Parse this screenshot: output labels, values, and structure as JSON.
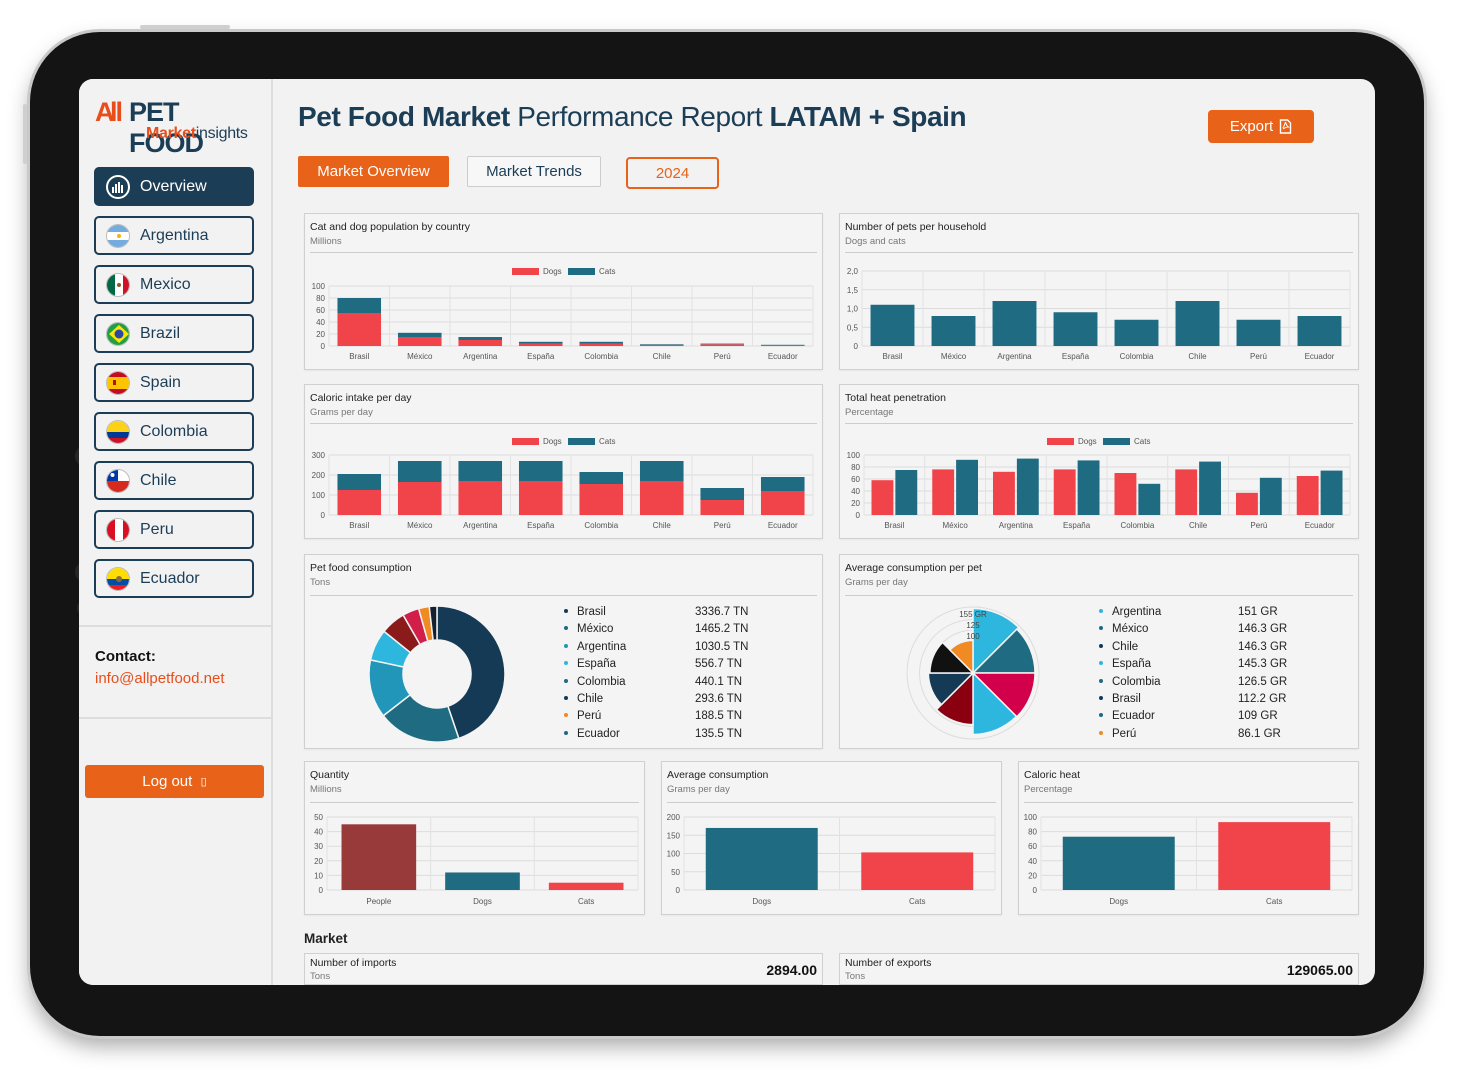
{
  "colors": {
    "accent": "#e8621a",
    "navy": "#1c3d56",
    "teal": "#1e6b82",
    "red": "#f0444a"
  },
  "logo": {
    "a": "A",
    "pet_food": "PET FOOD",
    "market": "Market",
    "insights": "insights"
  },
  "sidebar": {
    "items": [
      {
        "label": "Overview",
        "icon": "bar-chart-icon"
      },
      {
        "label": "Argentina",
        "icon": "argentina-flag-icon"
      },
      {
        "label": "Mexico",
        "icon": "mexico-flag-icon"
      },
      {
        "label": "Brazil",
        "icon": "brazil-flag-icon"
      },
      {
        "label": "Spain",
        "icon": "spain-flag-icon"
      },
      {
        "label": "Colombia",
        "icon": "colombia-flag-icon"
      },
      {
        "label": "Chile",
        "icon": "chile-flag-icon"
      },
      {
        "label": "Peru",
        "icon": "peru-flag-icon"
      },
      {
        "label": "Ecuador",
        "icon": "ecuador-flag-icon"
      }
    ],
    "contact_heading": "Contact:",
    "contact_email": "info@allpetfood.net",
    "logout_label": "Log out",
    "logout_icon": "▯"
  },
  "header": {
    "title_bold1": "Pet Food Market",
    "title_mid": " Performance Report ",
    "title_bold2": "LATAM + Spain",
    "export_label": "Export"
  },
  "tabs": {
    "market_overview": "Market Overview",
    "market_trends": "Market Trends",
    "year": "2024"
  },
  "market_heading": "Market",
  "kpis": {
    "imports": {
      "title": "Number of imports",
      "subtitle": "Tons",
      "value": "2894.00"
    },
    "exports": {
      "title": "Number of exports",
      "subtitle": "Tons",
      "value": "129065.00"
    }
  },
  "chart_data": [
    {
      "id": "population",
      "type": "bar",
      "stacked": true,
      "title": "Cat and dog population by country",
      "subtitle": "Millions",
      "categories": [
        "Brasil",
        "México",
        "Argentina",
        "España",
        "Colombia",
        "Chile",
        "Perú",
        "Ecuador"
      ],
      "series": [
        {
          "name": "Dogs",
          "color": "#f0444a",
          "values": [
            55,
            15,
            10,
            4,
            4,
            2,
            3,
            1
          ]
        },
        {
          "name": "Cats",
          "color": "#1e6b82",
          "values": [
            25,
            7,
            5,
            3,
            3,
            1,
            1,
            1
          ]
        }
      ],
      "yticks": [
        "100",
        "80",
        "60",
        "40",
        "20",
        "0"
      ],
      "ylim": [
        0,
        100
      ],
      "legend": "top-center"
    },
    {
      "id": "pets_household",
      "type": "bar",
      "title": "Number of pets per household",
      "subtitle": "Dogs and cats",
      "categories": [
        "Brasil",
        "México",
        "Argentina",
        "España",
        "Colombia",
        "Chile",
        "Perú",
        "Ecuador"
      ],
      "series": [
        {
          "name": "Pets",
          "color": "#1e6b82",
          "values": [
            1.1,
            0.8,
            1.2,
            0.9,
            0.7,
            1.2,
            0.7,
            0.8
          ]
        }
      ],
      "yticks": [
        "2,0",
        "1,5",
        "1,0",
        "0,5",
        "0"
      ],
      "ylim": [
        0,
        2
      ]
    },
    {
      "id": "caloric",
      "type": "bar",
      "stacked": true,
      "title": "Caloric intake per day",
      "subtitle": "Grams per day",
      "categories": [
        "Brasil",
        "México",
        "Argentina",
        "España",
        "Colombia",
        "Chile",
        "Perú",
        "Ecuador"
      ],
      "series": [
        {
          "name": "Dogs",
          "color": "#f0444a",
          "values": [
            125,
            165,
            170,
            170,
            155,
            170,
            75,
            120
          ]
        },
        {
          "name": "Cats",
          "color": "#1e6b82",
          "values": [
            80,
            105,
            100,
            100,
            60,
            100,
            60,
            70
          ]
        }
      ],
      "yticks": [
        "300",
        "200",
        "100",
        "0"
      ],
      "ylim": [
        0,
        300
      ],
      "legend": "top-center"
    },
    {
      "id": "heat",
      "type": "bar",
      "grouped": true,
      "title": "Total heat penetration",
      "subtitle": "Percentage",
      "categories": [
        "Brasil",
        "México",
        "Argentina",
        "España",
        "Colombia",
        "Chile",
        "Perú",
        "Ecuador"
      ],
      "series": [
        {
          "name": "Dogs",
          "color": "#f0444a",
          "values": [
            58,
            76,
            72,
            76,
            70,
            76,
            37,
            65
          ]
        },
        {
          "name": "Cats",
          "color": "#1e6b82",
          "values": [
            75,
            92,
            94,
            91,
            52,
            89,
            62,
            74
          ]
        }
      ],
      "yticks": [
        "100",
        "80",
        "60",
        "40",
        "20",
        "0"
      ],
      "ylim": [
        0,
        100
      ],
      "legend": "top-center"
    },
    {
      "id": "consumption",
      "type": "pie",
      "donut": true,
      "title": "Pet food consumption",
      "subtitle": "Tons",
      "labels": [
        "Brasil",
        "México",
        "Argentina",
        "España",
        "Colombia",
        "Chile",
        "Perú",
        "Ecuador"
      ],
      "values": [
        3336.7,
        1465.2,
        1030.5,
        556.7,
        440.1,
        293.6,
        188.5,
        135.5
      ],
      "display": [
        "3336.7 TN",
        "1465.2 TN",
        "1030.5 TN",
        "556.7 TN",
        "440.1 TN",
        "293.6 TN",
        "188.5 TN",
        "135.5 TN"
      ],
      "colors": [
        "#143a55",
        "#1e6b82",
        "#2196b8",
        "#2db7de",
        "#8b1a1a",
        "#d21f4a",
        "#f08a22",
        "#14202e"
      ],
      "legend_colors": [
        "#143a55",
        "#1e6b82",
        "#2196b8",
        "#2db7de",
        "#1e6b82",
        "#143a55",
        "#f08a22",
        "#1e6b82"
      ]
    },
    {
      "id": "avg_pet",
      "type": "pie",
      "polar": true,
      "title": "Average consumption per pet",
      "subtitle": "Grams per day",
      "labels": [
        "Argentina",
        "México",
        "Chile",
        "España",
        "Colombia",
        "Brasil",
        "Ecuador",
        "Perú"
      ],
      "values": [
        151,
        146.3,
        146.3,
        145.3,
        126.5,
        112.2,
        109,
        86.1
      ],
      "display": [
        "151 GR",
        "146.3 GR",
        "146.3 GR",
        "145.3 GR",
        "126.5 GR",
        "112.2 GR",
        "109 GR",
        "86.1 GR"
      ],
      "colors": [
        "#2db7de",
        "#1e6b82",
        "#d2004a",
        "#2db7de",
        "#8b0010",
        "#143a55",
        "#111111",
        "#f08a22"
      ],
      "radial_ticks": [
        "155 GR",
        "125",
        "100"
      ],
      "rmax": 155
    },
    {
      "id": "quantity",
      "type": "bar",
      "title": "Quantity",
      "subtitle": "Millions",
      "categories": [
        "People",
        "Dogs",
        "Cats"
      ],
      "series": [
        {
          "name": "Quantity",
          "values": [
            45,
            12,
            5
          ],
          "colors": [
            "#983a3a",
            "#1e6b82",
            "#f0444a"
          ]
        }
      ],
      "yticks": [
        "50",
        "40",
        "30",
        "20",
        "10",
        "0"
      ],
      "ylim": [
        0,
        50
      ]
    },
    {
      "id": "avg_consumption",
      "type": "bar",
      "title": "Average consumption",
      "subtitle": "Grams per day",
      "categories": [
        "Dogs",
        "Cats"
      ],
      "series": [
        {
          "name": "Consumption",
          "values": [
            170,
            103
          ],
          "colors": [
            "#1e6b82",
            "#f0444a"
          ]
        }
      ],
      "yticks": [
        "200",
        "150",
        "100",
        "50",
        "0"
      ],
      "ylim": [
        0,
        200
      ]
    },
    {
      "id": "caloric_heat",
      "type": "bar",
      "title": "Caloric heat",
      "subtitle": "Percentage",
      "categories": [
        "Dogs",
        "Cats"
      ],
      "series": [
        {
          "name": "Caloric heat",
          "values": [
            73,
            93
          ],
          "colors": [
            "#1e6b82",
            "#f0444a"
          ]
        }
      ],
      "yticks": [
        "100",
        "80",
        "60",
        "40",
        "20",
        "0"
      ],
      "ylim": [
        0,
        100
      ]
    }
  ]
}
